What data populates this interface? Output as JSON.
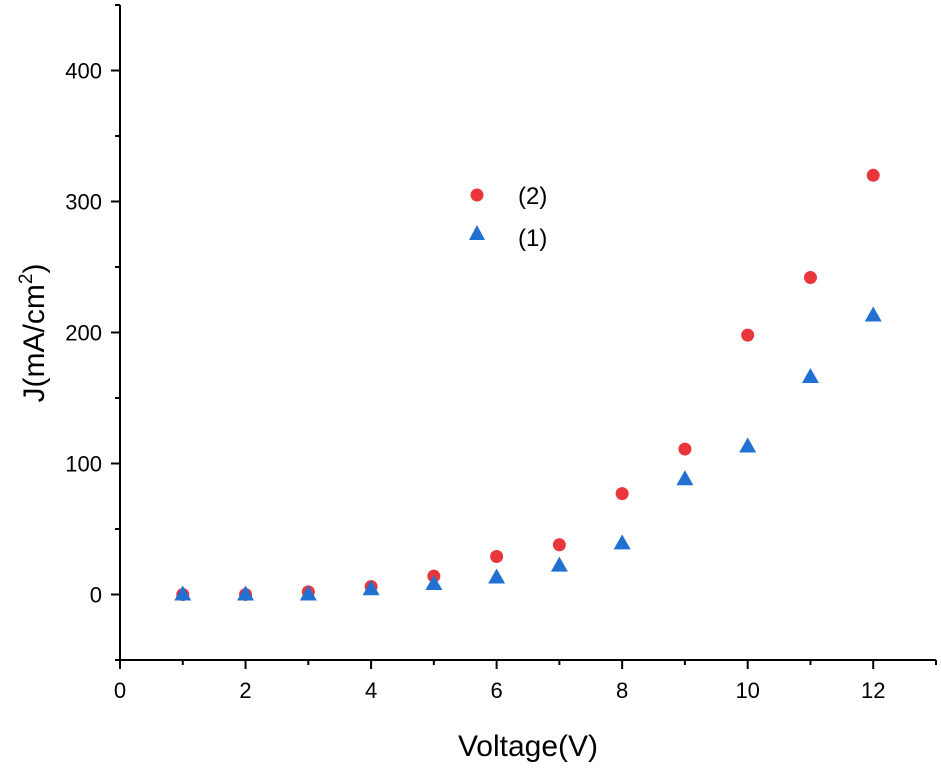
{
  "chart_data": {
    "type": "scatter",
    "title": "",
    "xlabel": "Voltage(V)",
    "ylabel": "J(mA/cm",
    "ylabel_superscript": "2",
    "ylabel_suffix": ")",
    "xlim": [
      0,
      13
    ],
    "ylim": [
      -50,
      450
    ],
    "xticks": [
      0,
      2,
      4,
      6,
      8,
      10,
      12
    ],
    "yticks": [
      0,
      100,
      200,
      300,
      400
    ],
    "grid": false,
    "legend_position": "upper-center",
    "series": [
      {
        "name": "(2)",
        "marker": "circle",
        "color": "#e8363c",
        "x": [
          1,
          2,
          3,
          4,
          5,
          6,
          7,
          8,
          9,
          10,
          11,
          12
        ],
        "y": [
          0,
          0,
          2,
          6,
          14,
          29,
          38,
          77,
          111,
          198,
          242,
          320
        ]
      },
      {
        "name": "(1)",
        "marker": "triangle",
        "color": "#2271d2",
        "x": [
          1,
          2,
          3,
          4,
          5,
          6,
          7,
          8,
          9,
          10,
          11,
          12
        ],
        "y": [
          0,
          0,
          0,
          4,
          8,
          13,
          22,
          39,
          88,
          113,
          166,
          213
        ]
      }
    ]
  }
}
